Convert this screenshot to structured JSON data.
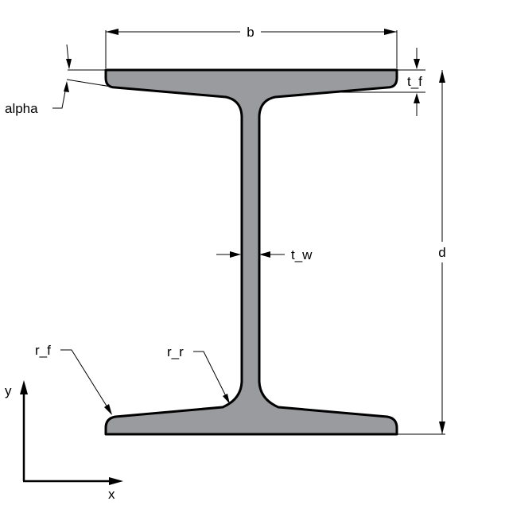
{
  "diagram": {
    "labels": {
      "b": "b",
      "t_f": "t_f",
      "alpha": "alpha",
      "d": "d",
      "t_w": "t_w",
      "r_f": "r_f",
      "r_r": "r_r",
      "y": "y",
      "x": "x"
    },
    "colors": {
      "section_fill": "#9a9b9f",
      "outline": "#000000",
      "background": "#ffffff"
    }
  }
}
